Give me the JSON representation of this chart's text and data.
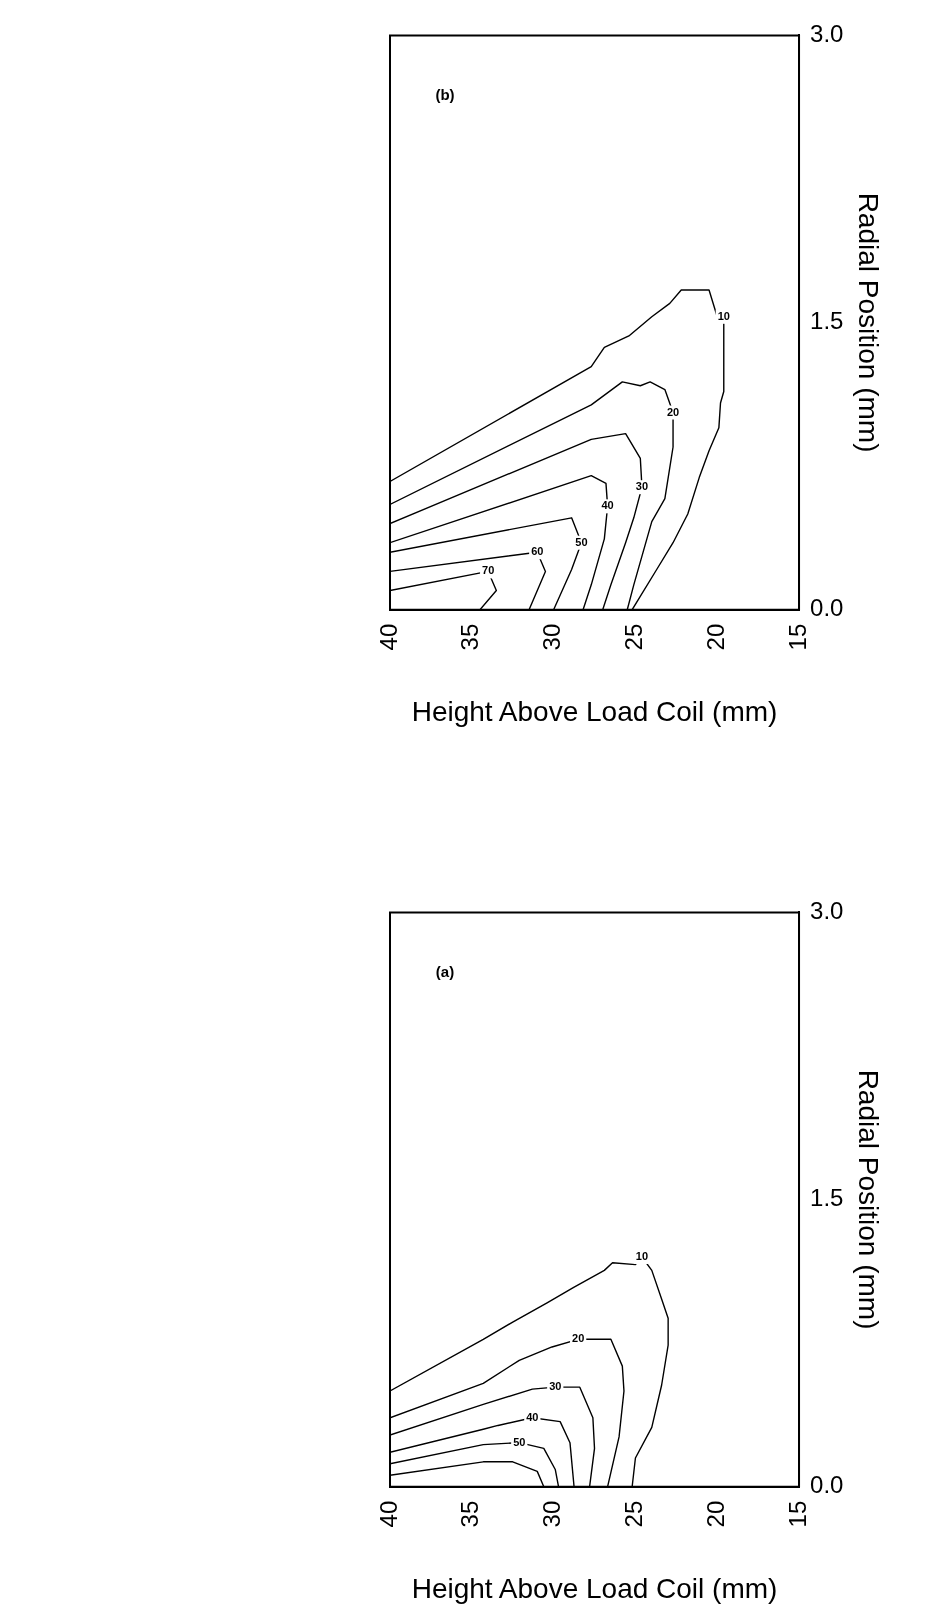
{
  "chart_data": [
    {
      "type": "line",
      "xlabel": "Height Above Load Coil (mm)",
      "ylabel": "Radial Position (mm)",
      "annotations": [
        "(b)"
      ],
      "xlim": [
        40,
        15
      ],
      "ylim": [
        0,
        3
      ],
      "xticks": [
        40,
        35,
        30,
        25,
        20,
        15
      ],
      "yticks": [
        {
          "value": 0,
          "label": "0.0"
        },
        {
          "value": 1.5,
          "label": "1.5"
        },
        {
          "value": 3,
          "label": "3.0"
        }
      ],
      "series": [
        {
          "name": "10",
          "color": "#000000",
          "x": [
            40,
            27.7,
            26.9,
            25.4,
            24.0,
            22.9,
            22.2,
            20.5,
            20.0,
            19.6,
            19.6,
            19.8,
            19.9,
            20.5,
            21.1,
            21.8,
            22.7,
            23.7,
            25.2
          ],
          "values": [
            0.67,
            1.27,
            1.37,
            1.43,
            1.53,
            1.6,
            1.67,
            1.67,
            1.53,
            1.53,
            1.14,
            1.08,
            0.95,
            0.83,
            0.69,
            0.5,
            0.35,
            0.21,
            0
          ]
        },
        {
          "name": "20",
          "color": "#000000",
          "x": [
            40,
            27.7,
            25.8,
            24.7,
            24.1,
            23.2,
            22.7,
            22.7,
            23.2,
            24.0,
            24.5,
            25.1,
            25.5
          ],
          "values": [
            0.55,
            1.07,
            1.19,
            1.17,
            1.19,
            1.15,
            1.03,
            0.85,
            0.58,
            0.46,
            0.31,
            0.13,
            0
          ]
        },
        {
          "name": "30",
          "color": "#000000",
          "x": [
            40,
            27.7,
            25.6,
            24.7,
            24.6,
            25.1,
            25.6,
            26.5,
            27
          ],
          "values": [
            0.45,
            0.89,
            0.92,
            0.79,
            0.64,
            0.48,
            0.35,
            0.13,
            0
          ]
        },
        {
          "name": "40",
          "color": "#000000",
          "x": [
            40,
            27.7,
            26.8,
            26.7,
            26.9,
            27.7,
            28.2
          ],
          "values": [
            0.35,
            0.7,
            0.66,
            0.54,
            0.37,
            0.13,
            0
          ]
        },
        {
          "name": "50",
          "color": "#000000",
          "x": [
            40,
            28.9,
            28.3,
            28.9,
            30
          ],
          "values": [
            0.3,
            0.48,
            0.35,
            0.21,
            0
          ]
        },
        {
          "name": "60",
          "color": "#000000",
          "x": [
            40,
            31,
            30.5,
            31.5
          ],
          "values": [
            0.2,
            0.3,
            0.2,
            0
          ]
        },
        {
          "name": "70",
          "color": "#000000",
          "x": [
            40,
            34,
            33.5,
            34.5
          ],
          "values": [
            0.1,
            0.2,
            0.1,
            0
          ]
        }
      ]
    },
    {
      "type": "line",
      "xlabel": "Height Above Load Coil (mm)",
      "ylabel": "Radial Position (mm)",
      "annotations": [
        "(a)"
      ],
      "xlim": [
        40,
        15
      ],
      "ylim": [
        0,
        3
      ],
      "xticks": [
        40,
        35,
        30,
        25,
        20,
        15
      ],
      "yticks": [
        {
          "value": 0,
          "label": "0.0"
        },
        {
          "value": 1.5,
          "label": "1.5"
        },
        {
          "value": 3,
          "label": "3.0"
        }
      ],
      "series": [
        {
          "name": "10",
          "color": "#000000",
          "x": [
            40,
            34.3,
            32.5,
            30.4,
            28.8,
            26.9,
            26.4,
            25.0,
            24.6,
            24.0,
            23.4,
            23.0,
            23.0,
            23.4,
            24.0,
            25.0,
            25.2
          ],
          "values": [
            0.5,
            0.77,
            0.86,
            0.96,
            1.04,
            1.13,
            1.17,
            1.16,
            1.2,
            1.13,
            0.98,
            0.88,
            0.74,
            0.53,
            0.31,
            0.15,
            0
          ]
        },
        {
          "name": "20",
          "color": "#000000",
          "x": [
            40,
            34.3,
            32.1,
            30.1,
            28.5,
            26.5,
            25.8,
            25.7,
            26.0,
            26.7
          ],
          "values": [
            0.36,
            0.54,
            0.66,
            0.73,
            0.77,
            0.77,
            0.63,
            0.5,
            0.26,
            0
          ]
        },
        {
          "name": "30",
          "color": "#000000",
          "x": [
            40,
            34.3,
            31.3,
            29.9,
            28.4,
            27.6,
            27.5,
            27.8
          ],
          "values": [
            0.27,
            0.43,
            0.51,
            0.52,
            0.52,
            0.36,
            0.2,
            0
          ]
        },
        {
          "name": "40",
          "color": "#000000",
          "x": [
            40,
            34.3,
            33.4,
            31.3,
            29.6,
            29.0,
            28.75
          ],
          "values": [
            0.18,
            0.3,
            0.32,
            0.36,
            0.34,
            0.23,
            0
          ]
        },
        {
          "name": "50",
          "color": "#000000",
          "x": [
            40,
            34.3,
            32.1,
            30.6,
            29.9,
            29.7
          ],
          "values": [
            0.12,
            0.22,
            0.23,
            0.2,
            0.09,
            0
          ]
        },
        {
          "color": "#000000",
          "x": [
            40,
            34.3,
            32.5,
            31.0,
            30.6
          ],
          "values": [
            0.06,
            0.13,
            0.13,
            0.08,
            0
          ]
        }
      ]
    }
  ]
}
